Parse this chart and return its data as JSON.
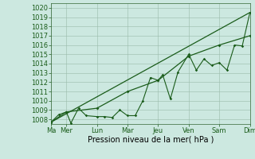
{
  "xlabel": "Pression niveau de la mer( hPa )",
  "bg_color": "#cce8e0",
  "grid_color": "#99bbaa",
  "line_color": "#1a5c1a",
  "ylim": [
    1007.5,
    1020.5
  ],
  "xlim": [
    0,
    13
  ],
  "day_labels": [
    "Ma",
    "Mer",
    "Lun",
    "Mar",
    "Jeu",
    "Ven",
    "Sam",
    "Dim"
  ],
  "day_positions": [
    0,
    1,
    3,
    5,
    7,
    9,
    11,
    13
  ],
  "series1_x": [
    0,
    0.5,
    1,
    1.3,
    1.8,
    2.3,
    3,
    3.5,
    4,
    4.5,
    5,
    5.5,
    6,
    6.5,
    7,
    7.3,
    7.8,
    8.3,
    9,
    9.5,
    10,
    10.5,
    11,
    11.5,
    12,
    12.5,
    13
  ],
  "series1_y": [
    1007.7,
    1008.5,
    1008.8,
    1007.6,
    1009.2,
    1008.4,
    1008.3,
    1008.3,
    1008.2,
    1009.0,
    1008.4,
    1008.4,
    1010.0,
    1012.5,
    1012.2,
    1012.8,
    1010.2,
    1013.1,
    1015.0,
    1013.3,
    1014.5,
    1013.8,
    1014.1,
    1013.3,
    1016.0,
    1015.9,
    1019.5
  ],
  "series2_x": [
    0,
    1,
    3,
    5,
    7,
    9,
    11,
    13
  ],
  "series2_y": [
    1007.7,
    1008.8,
    1009.2,
    1011.0,
    1012.2,
    1014.8,
    1016.0,
    1017.0
  ],
  "series3_x": [
    0,
    13
  ],
  "series3_y": [
    1007.7,
    1019.5
  ],
  "yticks": [
    1008,
    1009,
    1010,
    1011,
    1012,
    1013,
    1014,
    1015,
    1016,
    1017,
    1018,
    1019,
    1020
  ],
  "font_size": 6.0,
  "xlabel_fontsize": 7.0
}
